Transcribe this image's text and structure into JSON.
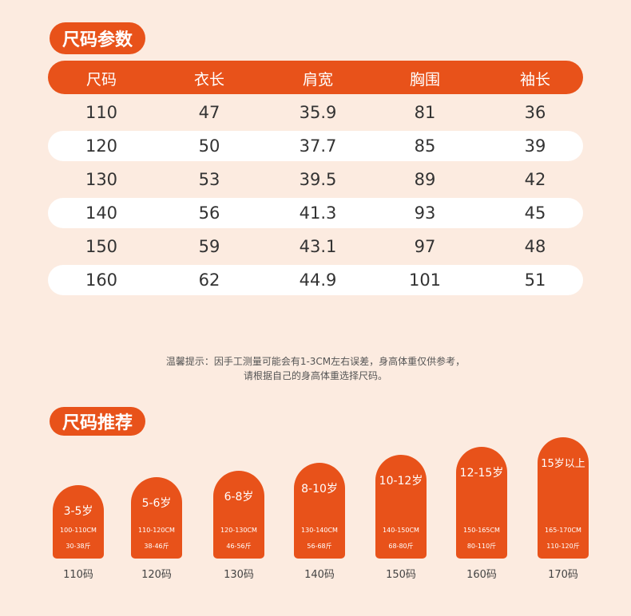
{
  "section1": {
    "title": "尺码参数",
    "table": {
      "header": [
        "尺码",
        "衣长",
        "肩宽",
        "胸围",
        "袖长"
      ],
      "rows": [
        [
          "110",
          "47",
          "35.9",
          "81",
          "36"
        ],
        [
          "120",
          "50",
          "37.7",
          "85",
          "39"
        ],
        [
          "130",
          "53",
          "39.5",
          "89",
          "42"
        ],
        [
          "140",
          "56",
          "41.3",
          "93",
          "45"
        ],
        [
          "150",
          "59",
          "43.1",
          "97",
          "48"
        ],
        [
          "160",
          "62",
          "44.9",
          "101",
          "51"
        ]
      ]
    }
  },
  "note": [
    "温馨提示：因手工测量可能会有1-3CM左右误差，身高体重仅供参考，",
    "请根据自己的身高体重选择尺码。"
  ],
  "section2": {
    "title": "尺码推荐",
    "cards": [
      {
        "age": "3-5岁",
        "height": "100-110CM",
        "weight": "30-38斤",
        "size": "110码"
      },
      {
        "age": "5-6岁",
        "height": "110-120CM",
        "weight": "38-46斤",
        "size": "120码"
      },
      {
        "age": "6-8岁",
        "height": "120-130CM",
        "weight": "46-56斤",
        "size": "130码"
      },
      {
        "age": "8-10岁",
        "height": "130-140CM",
        "weight": "56-68斤",
        "size": "140码"
      },
      {
        "age": "10-12岁",
        "height": "140-150CM",
        "weight": "68-80斤",
        "size": "150码"
      },
      {
        "age": "12-15岁",
        "height": "150-165CM",
        "weight": "80-110斤",
        "size": "160码"
      },
      {
        "age": "15岁以上",
        "height": "165-170CM",
        "weight": "110-120斤",
        "size": "170码"
      }
    ]
  }
}
